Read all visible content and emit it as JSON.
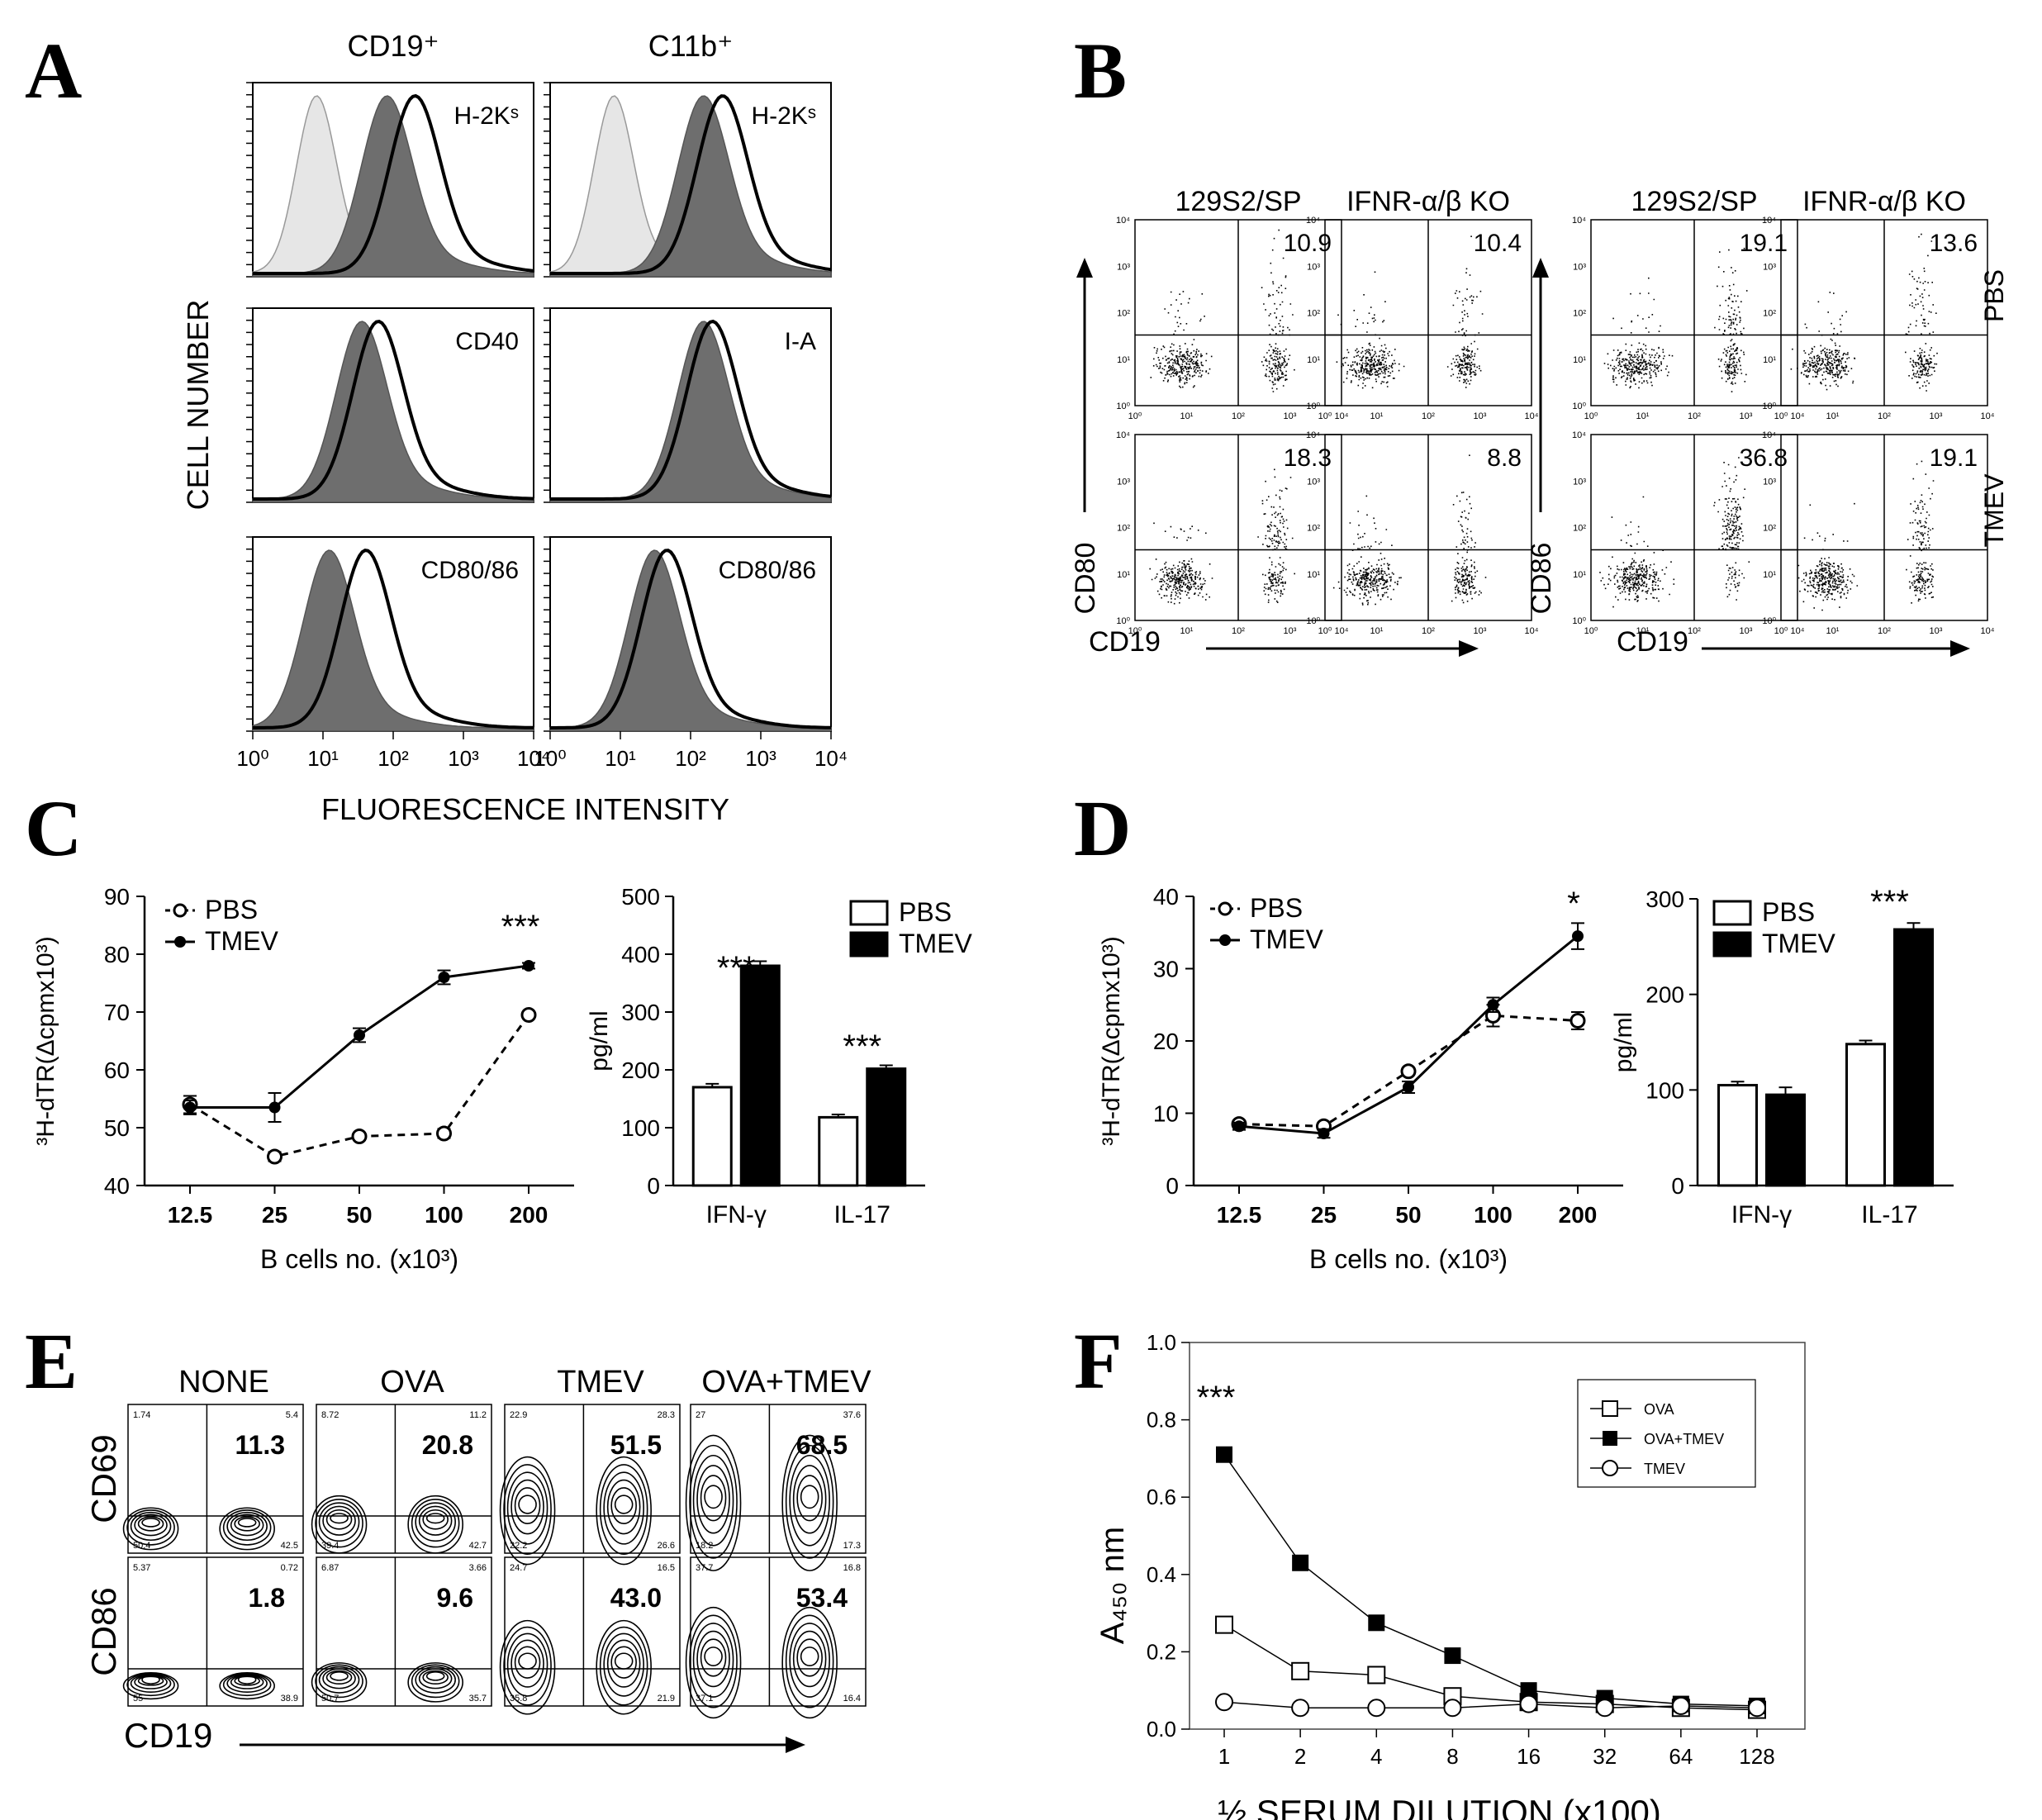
{
  "panel_labels": [
    "A",
    "B",
    "C",
    "D",
    "E",
    "F"
  ],
  "chart_data": [
    {
      "panel": "A",
      "type": "histogram",
      "column_titles": [
        "CD19⁺",
        "C11b⁺"
      ],
      "ylabel": "CELL NUMBER",
      "xlabel": "FLUORESCENCE INTENSITY",
      "x_scale": "log",
      "xlim": [
        1,
        10000
      ],
      "x_tick_labels": [
        "10⁰",
        "10¹",
        "10²",
        "10³",
        "10⁴"
      ],
      "subplots": [
        {
          "column": "CD19⁺",
          "marker": "H-2Kˢ",
          "curves": [
            {
              "kind": "control",
              "peak_x": 8
            },
            {
              "kind": "filled",
              "peak_x": 80
            },
            {
              "kind": "open",
              "peak_x": 200
            }
          ]
        },
        {
          "column": "C11b⁺",
          "marker": "H-2Kˢ",
          "curves": [
            {
              "kind": "control",
              "peak_x": 8
            },
            {
              "kind": "filled",
              "peak_x": 150
            },
            {
              "kind": "open",
              "peak_x": 280
            }
          ]
        },
        {
          "column": "CD19⁺",
          "marker": "CD40",
          "curves": [
            {
              "kind": "filled",
              "peak_x": 35
            },
            {
              "kind": "open",
              "peak_x": 60
            }
          ]
        },
        {
          "column": "C11b⁺",
          "marker": "I-A",
          "curves": [
            {
              "kind": "filled",
              "peak_x": 150
            },
            {
              "kind": "open",
              "peak_x": 200
            }
          ]
        },
        {
          "column": "CD19⁺",
          "marker": "CD80/86",
          "curves": [
            {
              "kind": "filled",
              "peak_x": 12
            },
            {
              "kind": "open",
              "peak_x": 40
            }
          ]
        },
        {
          "column": "C11b⁺",
          "marker": "CD80/86",
          "curves": [
            {
              "kind": "filled",
              "peak_x": 30
            },
            {
              "kind": "open",
              "peak_x": 45
            }
          ]
        }
      ]
    },
    {
      "panel": "B",
      "type": "scatter",
      "column_titles": [
        "129S2/SP",
        "IFNR-α/β KO",
        "129S2/SP",
        "IFNR-α/β KO"
      ],
      "row_labels": [
        "PBS",
        "TMEV"
      ],
      "left_ylabel": "CD80",
      "right_ylabel": "CD86",
      "xlabel": "CD19",
      "x_scale": "log",
      "y_scale": "log",
      "tick_labels": [
        "10⁰",
        "10¹",
        "10²",
        "10³",
        "10⁴"
      ],
      "quadrant_percentages": [
        {
          "marker": "CD80",
          "strain": "129S2/SP",
          "row": "PBS",
          "value": "10.9"
        },
        {
          "marker": "CD80",
          "strain": "IFNR-α/β KO",
          "row": "PBS",
          "value": "10.4"
        },
        {
          "marker": "CD86",
          "strain": "129S2/SP",
          "row": "PBS",
          "value": "19.1"
        },
        {
          "marker": "CD86",
          "strain": "IFNR-α/β KO",
          "row": "PBS",
          "value": "13.6"
        },
        {
          "marker": "CD80",
          "strain": "129S2/SP",
          "row": "TMEV",
          "value": "18.3"
        },
        {
          "marker": "CD80",
          "strain": "IFNR-α/β KO",
          "row": "TMEV",
          "value": "8.8"
        },
        {
          "marker": "CD86",
          "strain": "129S2/SP",
          "row": "TMEV",
          "value": "36.8"
        },
        {
          "marker": "CD86",
          "strain": "IFNR-α/β KO",
          "row": "TMEV",
          "value": "19.1"
        }
      ]
    },
    {
      "panel": "C-line",
      "type": "line",
      "categories": [
        "12.5",
        "25",
        "50",
        "100",
        "200"
      ],
      "series": [
        {
          "name": "PBS",
          "values": [
            54,
            45,
            48.5,
            49,
            69.5
          ],
          "errors": [
            1.5,
            0.8,
            0.6,
            0.8,
            0.6
          ]
        },
        {
          "name": "TMEV",
          "values": [
            53.5,
            53.5,
            66,
            76,
            78
          ],
          "errors": [
            1.2,
            2.5,
            1.2,
            1.2,
            0.5
          ]
        }
      ],
      "ylabel": "³H-dTR(Δcpmx10³)",
      "xlabel": "B cells no. (x10³)",
      "ylim": [
        40,
        90
      ],
      "yticks": [
        40,
        50,
        60,
        70,
        80,
        90
      ],
      "annotations": [
        {
          "category": "200",
          "text": "***"
        }
      ]
    },
    {
      "panel": "C-bar",
      "type": "bar",
      "categories": [
        "IFN-γ",
        "IL-17"
      ],
      "series": [
        {
          "name": "PBS",
          "values": [
            170,
            118
          ],
          "errors": [
            3,
            2
          ]
        },
        {
          "name": "TMEV",
          "values": [
            380,
            202
          ],
          "errors": [
            5,
            3
          ]
        }
      ],
      "ylabel": "pg/ml",
      "ylim": [
        0,
        500
      ],
      "yticks": [
        0,
        100,
        200,
        300,
        400,
        500
      ],
      "annotations": [
        {
          "category": "IFN-γ",
          "text": "***"
        },
        {
          "category": "IL-17",
          "text": "***"
        }
      ]
    },
    {
      "panel": "D-line",
      "type": "line",
      "categories": [
        "12.5",
        "25",
        "50",
        "100",
        "200"
      ],
      "series": [
        {
          "name": "PBS",
          "values": [
            8.5,
            8.2,
            15.8,
            23.5,
            22.8
          ],
          "errors": [
            0.5,
            0.5,
            0.5,
            1.5,
            1.2
          ]
        },
        {
          "name": "TMEV",
          "values": [
            8.2,
            7.2,
            13.6,
            25,
            34.5
          ],
          "errors": [
            0.5,
            0.6,
            0.8,
            1,
            1.8
          ]
        }
      ],
      "ylabel": "³H-dTR(Δcpmx10³)",
      "xlabel": "B cells no. (x10³)",
      "ylim": [
        0,
        40
      ],
      "yticks": [
        0,
        10,
        20,
        30,
        40
      ],
      "annotations": [
        {
          "category": "200",
          "text": "*"
        }
      ]
    },
    {
      "panel": "D-bar",
      "type": "bar",
      "categories": [
        "IFN-γ",
        "IL-17"
      ],
      "series": [
        {
          "name": "PBS",
          "values": [
            105,
            148
          ],
          "errors": [
            2,
            2
          ]
        },
        {
          "name": "TMEV",
          "values": [
            95,
            268
          ],
          "errors": [
            6,
            5
          ]
        }
      ],
      "ylabel": "pg/ml",
      "ylim": [
        0,
        300
      ],
      "yticks": [
        0,
        100,
        200,
        300
      ],
      "annotations": [
        {
          "category": "IL-17",
          "text": "***"
        }
      ]
    },
    {
      "panel": "E",
      "type": "contour",
      "column_titles": [
        "NONE",
        "OVA",
        "TMEV",
        "OVA+TMEV"
      ],
      "row_labels": [
        "CD69",
        "CD86"
      ],
      "xlabel": "CD19",
      "cells": [
        {
          "row": "CD69",
          "column": "NONE",
          "main": "11.3",
          "corners": [
            "1.74",
            "5.4",
            "50.4",
            "42.5"
          ]
        },
        {
          "row": "CD69",
          "column": "OVA",
          "main": "20.8",
          "corners": [
            "8.72",
            "11.2",
            "39.4",
            "42.7"
          ]
        },
        {
          "row": "CD69",
          "column": "TMEV",
          "main": "51.5",
          "corners": [
            "22.9",
            "28.3",
            "22.2",
            "26.6"
          ]
        },
        {
          "row": "CD69",
          "column": "OVA+TMEV",
          "main": "68.5",
          "corners": [
            "27",
            "37.6",
            "18.2",
            "17.3"
          ]
        },
        {
          "row": "CD86",
          "column": "NONE",
          "main": "1.8",
          "corners": [
            "5.37",
            "0.72",
            "55",
            "38.9"
          ]
        },
        {
          "row": "CD86",
          "column": "OVA",
          "main": "9.6",
          "corners": [
            "6.87",
            "3.66",
            "50.7",
            "35.7"
          ]
        },
        {
          "row": "CD86",
          "column": "TMEV",
          "main": "43.0",
          "corners": [
            "24.7",
            "16.5",
            "35.8",
            "21.9"
          ]
        },
        {
          "row": "CD86",
          "column": "OVA+TMEV",
          "main": "53.4",
          "corners": [
            "37.7",
            "16.8",
            "37.1",
            "16.4"
          ]
        }
      ]
    },
    {
      "panel": "F",
      "type": "line",
      "categories": [
        "1",
        "2",
        "4",
        "8",
        "16",
        "32",
        "64",
        "128"
      ],
      "series": [
        {
          "name": "OVA",
          "values": [
            0.27,
            0.15,
            0.14,
            0.085,
            0.07,
            0.065,
            0.055,
            0.05
          ]
        },
        {
          "name": "OVA+TMEV",
          "values": [
            0.71,
            0.43,
            0.275,
            0.19,
            0.1,
            0.08,
            0.065,
            0.06
          ]
        },
        {
          "name": "TMEV",
          "values": [
            0.07,
            0.055,
            0.055,
            0.055,
            0.065,
            0.055,
            0.06,
            0.055
          ]
        }
      ],
      "ylabel": "A₄₅₀ nm",
      "xlabel": "½ SERUM DILUTION (x100)",
      "ylim": [
        0,
        1.0
      ],
      "yticks": [
        "0.0",
        "0.2",
        "0.4",
        "0.6",
        "0.8",
        "1.0"
      ],
      "legend": "top-right",
      "annotations": [
        {
          "category": "1",
          "text": "***"
        }
      ]
    }
  ]
}
